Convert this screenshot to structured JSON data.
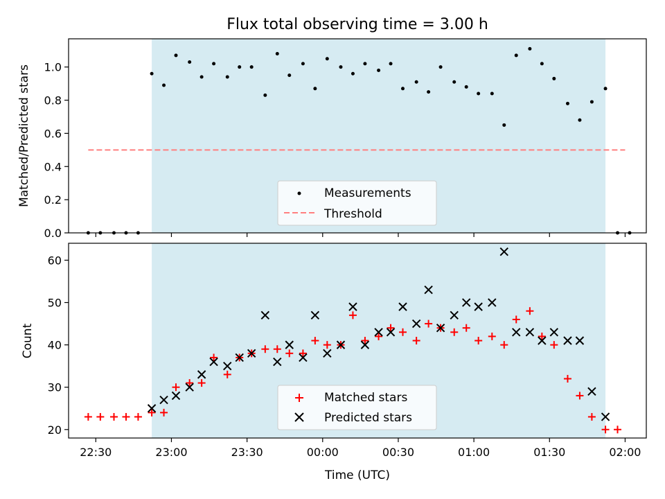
{
  "chart_data": [
    {
      "type": "scatter",
      "title": "Flux total observing time = 3.00 h",
      "ylabel": "Matched/Predicted stars",
      "xlabel": "",
      "ylim": [
        0,
        1.17
      ],
      "yticks": [
        0.0,
        0.2,
        0.4,
        0.6,
        0.8,
        1.0
      ],
      "ytick_labels": [
        "0.0",
        "0.2",
        "0.4",
        "0.6",
        "0.8",
        "1.0"
      ],
      "threshold": {
        "value": 0.5,
        "x_from": 22.45,
        "x_to": 26.0,
        "color": "#ff7f7f"
      },
      "legend": {
        "position": "bottom-center",
        "entries": [
          "Measurements",
          "Threshold"
        ]
      },
      "series": [
        {
          "name": "Measurements",
          "color": "#000000",
          "x": [
            22.45,
            22.53,
            22.62,
            22.7,
            22.78,
            22.87,
            22.95,
            23.03,
            23.12,
            23.2,
            23.28,
            23.37,
            23.45,
            23.53,
            23.62,
            23.7,
            23.78,
            23.87,
            23.95,
            24.03,
            24.12,
            24.2,
            24.28,
            24.37,
            24.45,
            24.53,
            24.62,
            24.7,
            24.78,
            24.87,
            24.95,
            25.03,
            25.12,
            25.2,
            25.28,
            25.37,
            25.45,
            25.53,
            25.62,
            25.7,
            25.78,
            25.87,
            25.95,
            26.03
          ],
          "values": [
            0,
            0,
            0,
            0,
            0,
            0.96,
            0.89,
            1.07,
            1.03,
            0.94,
            1.02,
            0.94,
            1.0,
            1.0,
            0.83,
            1.08,
            0.95,
            1.02,
            0.87,
            1.05,
            1.0,
            0.96,
            1.02,
            0.98,
            1.02,
            0.87,
            0.91,
            0.85,
            1.0,
            0.91,
            0.88,
            0.84,
            0.84,
            0.65,
            1.07,
            1.11,
            1.02,
            0.93,
            0.78,
            0.68,
            0.79,
            0.87,
            0.0,
            0.0
          ]
        }
      ]
    },
    {
      "type": "scatter",
      "title": "",
      "ylabel": "Count",
      "xlabel": "Time (UTC)",
      "ylim": [
        18,
        64
      ],
      "yticks": [
        20,
        30,
        40,
        50,
        60
      ],
      "ytick_labels": [
        "20",
        "30",
        "40",
        "50",
        "60"
      ],
      "legend": {
        "position": "bottom-center",
        "entries": [
          "Matched stars",
          "Predicted stars"
        ]
      },
      "series": [
        {
          "name": "Matched stars",
          "marker": "plus",
          "color": "#ff0000",
          "x": [
            22.45,
            22.53,
            22.62,
            22.7,
            22.78,
            22.87,
            22.95,
            23.03,
            23.12,
            23.2,
            23.28,
            23.37,
            23.45,
            23.53,
            23.62,
            23.7,
            23.78,
            23.87,
            23.95,
            24.03,
            24.12,
            24.2,
            24.28,
            24.37,
            24.45,
            24.53,
            24.62,
            24.7,
            24.78,
            24.87,
            24.95,
            25.03,
            25.12,
            25.2,
            25.28,
            25.37,
            25.45,
            25.53,
            25.62,
            25.7,
            25.78,
            25.87,
            25.95
          ],
          "values": [
            23,
            23,
            23,
            23,
            23,
            24,
            24,
            30,
            31,
            31,
            37,
            33,
            37,
            38,
            39,
            39,
            38,
            38,
            41,
            40,
            40,
            47,
            41,
            42,
            44,
            43,
            41,
            45,
            44,
            43,
            44,
            41,
            42,
            40,
            46,
            48,
            42,
            40,
            32,
            28,
            23,
            20,
            20
          ]
        },
        {
          "name": "Predicted stars",
          "marker": "x",
          "color": "#000000",
          "x": [
            22.87,
            22.95,
            23.03,
            23.12,
            23.2,
            23.28,
            23.37,
            23.45,
            23.53,
            23.62,
            23.7,
            23.78,
            23.87,
            23.95,
            24.03,
            24.12,
            24.2,
            24.28,
            24.37,
            24.45,
            24.53,
            24.62,
            24.7,
            24.78,
            24.87,
            24.95,
            25.03,
            25.12,
            25.2,
            25.28,
            25.37,
            25.45,
            25.53,
            25.62,
            25.7,
            25.78,
            25.87
          ],
          "values": [
            25,
            27,
            28,
            30,
            33,
            36,
            35,
            37,
            38,
            47,
            36,
            40,
            37,
            47,
            38,
            40,
            49,
            40,
            43,
            43,
            49,
            45,
            53,
            44,
            47,
            50,
            49,
            50,
            62,
            43,
            43,
            41,
            43,
            41,
            41,
            29,
            23
          ]
        }
      ]
    }
  ],
  "shared_x": {
    "label": "Time (UTC)",
    "range": [
      22.32,
      26.14
    ],
    "ticks": [
      22.5,
      23.0,
      23.5,
      24.0,
      24.5,
      25.0,
      25.5,
      26.0
    ],
    "tick_labels": [
      "22:30",
      "23:00",
      "23:30",
      "00:00",
      "00:30",
      "01:00",
      "01:30",
      "02:00"
    ],
    "shaded_span": {
      "from": 22.87,
      "to": 25.87,
      "color": "#add8e6"
    }
  }
}
